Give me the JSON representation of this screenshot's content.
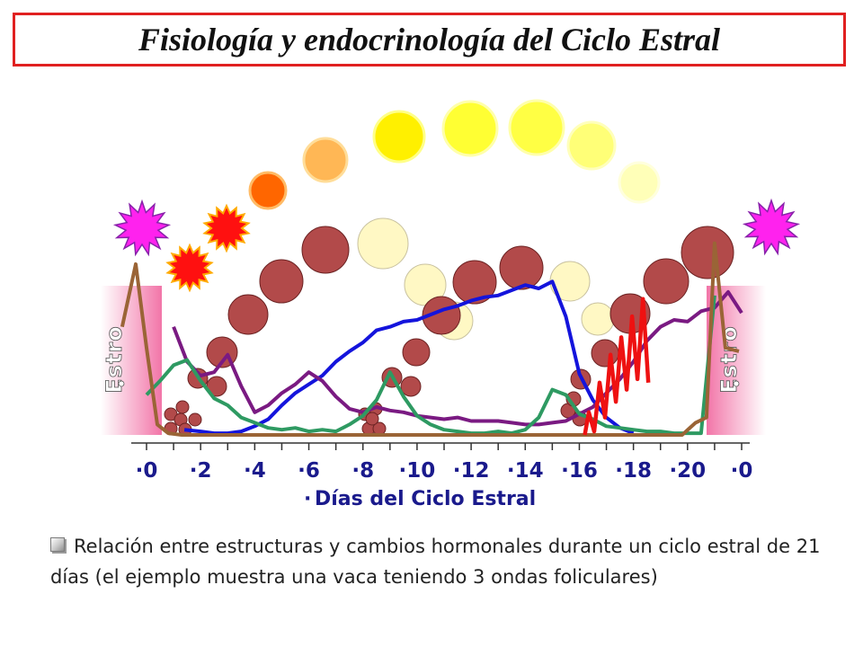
{
  "title": "Fisiología y endocrinología del Ciclo Estral",
  "caption": "Relación entre estructuras y cambios hormonales durante un ciclo estral de 21 días (el ejemplo muestra una vaca teniendo 3 ondas foliculares)",
  "chart_data": {
    "type": "line",
    "title": "",
    "xlabel": "Días del Ciclo Estral",
    "ylabel": "",
    "tick_labels": [
      "0",
      "2",
      "4",
      "6",
      "8",
      "10",
      "12",
      "14",
      "16",
      "18",
      "20",
      "0"
    ],
    "xlim": [
      0,
      22
    ],
    "ylim": [
      0,
      10
    ],
    "grid": false,
    "legend": "none",
    "estro_labels": [
      "Estro",
      "Estro"
    ],
    "series": [
      {
        "color": "#1414dc",
        "x": [
          1.4,
          2,
          2.5,
          3,
          3.5,
          4,
          4.5,
          5,
          5.5,
          6,
          6.5,
          7,
          7.5,
          8,
          8.5,
          9,
          9.5,
          10,
          10.5,
          11,
          11.5,
          12,
          12.5,
          13,
          13.5,
          14,
          14.5,
          15,
          15.5,
          16,
          16.5,
          17,
          17.5,
          18
        ],
        "values": [
          0.3,
          0.2,
          0.1,
          0.1,
          0.2,
          0.5,
          0.9,
          1.7,
          2.4,
          2.9,
          3.4,
          4.2,
          4.8,
          5.3,
          6.0,
          6.2,
          6.5,
          6.6,
          6.9,
          7.2,
          7.4,
          7.7,
          7.9,
          8.0,
          8.3,
          8.6,
          8.4,
          8.8,
          6.8,
          3.5,
          2.0,
          1.0,
          0.4,
          0.1
        ]
      },
      {
        "color": "#7a1a82",
        "x": [
          1,
          1.5,
          2,
          2.5,
          3,
          3.5,
          4,
          4.5,
          5,
          5.5,
          6,
          6.5,
          7,
          7.5,
          8,
          8.5,
          9,
          9.5,
          10,
          10.5,
          11,
          11.5,
          12,
          12.5,
          13,
          13.5,
          14,
          14.5,
          15,
          15.5,
          16,
          16.5,
          17,
          17.5,
          18,
          18.5,
          19,
          19.5,
          20,
          20.5,
          21,
          21.5,
          22
        ],
        "values": [
          6.2,
          4.2,
          3.4,
          3.6,
          4.6,
          2.8,
          1.3,
          1.7,
          2.4,
          2.9,
          3.6,
          3.1,
          2.2,
          1.5,
          1.3,
          1.6,
          1.4,
          1.3,
          1.1,
          1.0,
          0.9,
          1.0,
          0.8,
          0.8,
          0.8,
          0.7,
          0.6,
          0.6,
          0.7,
          0.8,
          1.2,
          1.6,
          2.4,
          3.2,
          4.2,
          5.4,
          6.2,
          6.6,
          6.5,
          7.1,
          7.3,
          8.2,
          7.0
        ]
      },
      {
        "color": "#2e9a62",
        "x": [
          0,
          0.5,
          1,
          1.5,
          2,
          2.5,
          3,
          3.5,
          4,
          4.5,
          5,
          5.5,
          6,
          6.5,
          7,
          7.5,
          8,
          8.5,
          9,
          9.5,
          10,
          10.5,
          11,
          11.5,
          12,
          12.5,
          13,
          13.5,
          14,
          14.5,
          15,
          15.5,
          16,
          16.5,
          17,
          17.5,
          18,
          18.5,
          19,
          19.5,
          20,
          20.5,
          21
        ],
        "values": [
          2.3,
          3.1,
          4.0,
          4.3,
          3.1,
          2.1,
          1.7,
          1.0,
          0.7,
          0.4,
          0.3,
          0.4,
          0.2,
          0.3,
          0.2,
          0.6,
          1.1,
          2.0,
          3.6,
          2.2,
          1.1,
          0.6,
          0.3,
          0.2,
          0.1,
          0.1,
          0.2,
          0.1,
          0.3,
          1.0,
          2.6,
          2.3,
          1.2,
          0.9,
          0.5,
          0.4,
          0.3,
          0.2,
          0.2,
          0.1,
          0.1,
          0.1,
          8.0
        ]
      },
      {
        "color": "#9a6436",
        "x": [
          -0.9,
          -0.4,
          0,
          0.4,
          0.8,
          1.3,
          19.3,
          19.8,
          20.3,
          20.7,
          21,
          21.4,
          21.9
        ],
        "values": [
          6.2,
          9.8,
          5.0,
          0.6,
          0.1,
          0.0,
          0.0,
          0.0,
          0.7,
          1.0,
          11.0,
          5.0,
          4.8
        ]
      },
      {
        "color": "#ee1111",
        "x": [
          16.2,
          16.35,
          16.55,
          16.75,
          16.95,
          17.15,
          17.35,
          17.55,
          17.75,
          17.95,
          18.15,
          18.35,
          18.55
        ],
        "values": [
          0.0,
          1.3,
          0.2,
          3.0,
          1.0,
          4.6,
          1.9,
          5.6,
          2.6,
          6.8,
          3.2,
          7.8,
          3.0
        ]
      }
    ]
  }
}
